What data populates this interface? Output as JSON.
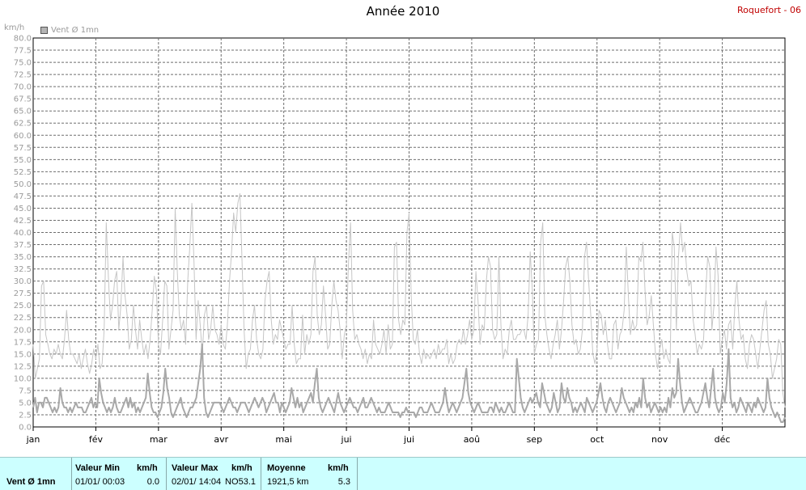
{
  "title": "Année 2010",
  "station": "Roquefort - 06",
  "unit_label": "km/h",
  "chart_data": {
    "type": "line",
    "title": "Année 2010",
    "ylabel": "km/h",
    "ylim": [
      0,
      80
    ],
    "y_tick_step": 2.5,
    "y_ticks": [
      "0.0",
      "2.5",
      "5.0",
      "7.5",
      "10.0",
      "12.5",
      "15.0",
      "17.5",
      "20.0",
      "22.5",
      "25.0",
      "27.5",
      "30.0",
      "32.5",
      "35.0",
      "37.5",
      "40.0",
      "42.5",
      "45.0",
      "47.5",
      "50.0",
      "52.5",
      "55.0",
      "57.5",
      "60.0",
      "62.5",
      "65.0",
      "67.5",
      "70.0",
      "72.5",
      "75.0",
      "77.5",
      "80.0"
    ],
    "x_ticks": [
      "jan",
      "fév",
      "mar",
      "avr",
      "mai",
      "jui",
      "jui",
      "aoû",
      "sep",
      "oct",
      "nov",
      "déc"
    ],
    "grid": true,
    "legend": [
      {
        "label": "Vent Ø 1mn",
        "color": "#b4b4b4"
      }
    ],
    "series": [
      {
        "name": "Vent Ø 1mn",
        "values": [
          4,
          6,
          3,
          5,
          5,
          4,
          6,
          6,
          5,
          4,
          3,
          4,
          3,
          4,
          8,
          5,
          4,
          4,
          3,
          4,
          3,
          4,
          5,
          4,
          4,
          4,
          3,
          3,
          4,
          5,
          6,
          4,
          5,
          4,
          10,
          7,
          5,
          4,
          3,
          4,
          3,
          4,
          6,
          4,
          3,
          3,
          4,
          5,
          6,
          4,
          6,
          4,
          5,
          3,
          4,
          3,
          4,
          5,
          6,
          11,
          7,
          4,
          3,
          3,
          2,
          3,
          4,
          7,
          12,
          8,
          6,
          3,
          2,
          3,
          4,
          5,
          6,
          4,
          3,
          2,
          3,
          4,
          4,
          5,
          6,
          9,
          12,
          17,
          6,
          3,
          2,
          3,
          4,
          5,
          5,
          5,
          5,
          4,
          3,
          4,
          5,
          6,
          5,
          4,
          4,
          3,
          4,
          5,
          5,
          5,
          4,
          3,
          4,
          5,
          6,
          5,
          4,
          5,
          6,
          5,
          3,
          4,
          5,
          6,
          7,
          5,
          5,
          3,
          5,
          4,
          3,
          4,
          5,
          8,
          6,
          4,
          6,
          4,
          5,
          3,
          4,
          5,
          6,
          7,
          5,
          9,
          12,
          6,
          4,
          3,
          4,
          5,
          6,
          5,
          4,
          3,
          5,
          7,
          5,
          4,
          3,
          4,
          5,
          6,
          5,
          4,
          4,
          3,
          4,
          5,
          6,
          4,
          4,
          5,
          6,
          5,
          4,
          3,
          4,
          3,
          3,
          3,
          4,
          5,
          4,
          3,
          3,
          3,
          3,
          2,
          3,
          3,
          4,
          3,
          3,
          3,
          3,
          2,
          3,
          4,
          4,
          3,
          3,
          3,
          4,
          5,
          4,
          3,
          3,
          3,
          4,
          5,
          8,
          5,
          3,
          4,
          5,
          4,
          3,
          4,
          5,
          6,
          9,
          12,
          7,
          5,
          4,
          3,
          4,
          5,
          4,
          3,
          3,
          3,
          3,
          4,
          4,
          3,
          5,
          4,
          3,
          4,
          3,
          3,
          4,
          5,
          4,
          3,
          3,
          14,
          10,
          6,
          4,
          3,
          4,
          5,
          6,
          5,
          6,
          7,
          5,
          4,
          9,
          7,
          5,
          4,
          3,
          4,
          7,
          5,
          3,
          4,
          9,
          6,
          5,
          8,
          6,
          5,
          3,
          4,
          3,
          4,
          5,
          4,
          3,
          6,
          5,
          4,
          3,
          4,
          5,
          7,
          9,
          6,
          4,
          3,
          5,
          6,
          5,
          4,
          3,
          4,
          5,
          8,
          6,
          5,
          4,
          3,
          4,
          3,
          5,
          4,
          6,
          4,
          10,
          6,
          4,
          5,
          3,
          4,
          5,
          4,
          3,
          4,
          3,
          4,
          3,
          6,
          4,
          8,
          6,
          7,
          14,
          9,
          5,
          3,
          4,
          5,
          6,
          5,
          4,
          3,
          3,
          4,
          5,
          7,
          9,
          6,
          4,
          8,
          12,
          6,
          4,
          3,
          4,
          7,
          5,
          9,
          16,
          6,
          4,
          5,
          3,
          4,
          6,
          5,
          4,
          3,
          5,
          4,
          3,
          5,
          4,
          6,
          5,
          4,
          3,
          4,
          10,
          6,
          4,
          3,
          2,
          3,
          2,
          1,
          1,
          2
        ]
      },
      {
        "name": "",
        "values": [
          17,
          10,
          12,
          14,
          29,
          30,
          19,
          17,
          15,
          14,
          16,
          15,
          17,
          15,
          14,
          18,
          24,
          18,
          15,
          15,
          14,
          13,
          15,
          12,
          14,
          16,
          13,
          11,
          13,
          16,
          14,
          17,
          12,
          13,
          20,
          42,
          31,
          22,
          25,
          30,
          32,
          20,
          25,
          35,
          27,
          23,
          16,
          18,
          25,
          20,
          16,
          22,
          18,
          15,
          17,
          14,
          18,
          24,
          31,
          28,
          17,
          15,
          22,
          30,
          29,
          16,
          20,
          24,
          45,
          32,
          23,
          20,
          22,
          17,
          30,
          37,
          46,
          34,
          18,
          26,
          21,
          15,
          23,
          25,
          18,
          20,
          25,
          20,
          19,
          17,
          21,
          17,
          16,
          21,
          30,
          36,
          44,
          40,
          46,
          48,
          34,
          20,
          12,
          15,
          16,
          22,
          25,
          18,
          15,
          14,
          16,
          26,
          30,
          32,
          22,
          17,
          19,
          18,
          22,
          20,
          18,
          16,
          17,
          17,
          25,
          17,
          13,
          14,
          14,
          23,
          15,
          19,
          17,
          19,
          32,
          35,
          23,
          19,
          21,
          29,
          23,
          16,
          17,
          25,
          30,
          26,
          24,
          20,
          14,
          19,
          21,
          34,
          42,
          24,
          18,
          19,
          17,
          16,
          14,
          16,
          13,
          15,
          14,
          22,
          17,
          16,
          15,
          17,
          20,
          15,
          21,
          16,
          17,
          37,
          38,
          22,
          19,
          22,
          21,
          40,
          44,
          27,
          18,
          17,
          20,
          15,
          13,
          16,
          14,
          15,
          14,
          15,
          16,
          14,
          17,
          15,
          16,
          16,
          18,
          13,
          15,
          13,
          14,
          17,
          18,
          17,
          20,
          17,
          19,
          22,
          18,
          20,
          32,
          26,
          17,
          21,
          20,
          30,
          35,
          33,
          20,
          18,
          19,
          35,
          21,
          14,
          16,
          15,
          20,
          22,
          18,
          18,
          19,
          19,
          20,
          20,
          18,
          23,
          36,
          28,
          15,
          17,
          18,
          38,
          42,
          23,
          19,
          16,
          14,
          17,
          19,
          22,
          16,
          20,
          26,
          33,
          35,
          30,
          21,
          17,
          18,
          15,
          16,
          20,
          35,
          38,
          30,
          23,
          15,
          13,
          16,
          24,
          23,
          19,
          22,
          17,
          14,
          14,
          21,
          22,
          16,
          19,
          20,
          24,
          37,
          27,
          19,
          22,
          20,
          21,
          35,
          34,
          38,
          28,
          21,
          23,
          27,
          21,
          15,
          12,
          16,
          18,
          14,
          16,
          14,
          13,
          40,
          37,
          20,
          35,
          42,
          36,
          38,
          32,
          29,
          30,
          22,
          19,
          15,
          17,
          16,
          18,
          27,
          35,
          33,
          20,
          25,
          37,
          31,
          15,
          18,
          20,
          16,
          21,
          22,
          16,
          25,
          30,
          22,
          18,
          19,
          14,
          12,
          17,
          19,
          18,
          15,
          12,
          16,
          20,
          24,
          26,
          17,
          15,
          10,
          12,
          14,
          18,
          17,
          7,
          4
        ]
      }
    ]
  },
  "stats": {
    "series_label": "Vent Ø 1mn",
    "min_header": "Valeur Min",
    "min_unit": "km/h",
    "min_date": "01/01/  00:03",
    "min_value": "0.0",
    "max_header": "Valeur Max",
    "max_unit": "km/h",
    "max_date": "02/01/  14:04",
    "max_dir": "NO",
    "max_value": "53.1",
    "avg_header": "Moyenne",
    "avg_unit": "km/h",
    "avg_distance": "1921,5 km",
    "avg_value": "5.3"
  }
}
